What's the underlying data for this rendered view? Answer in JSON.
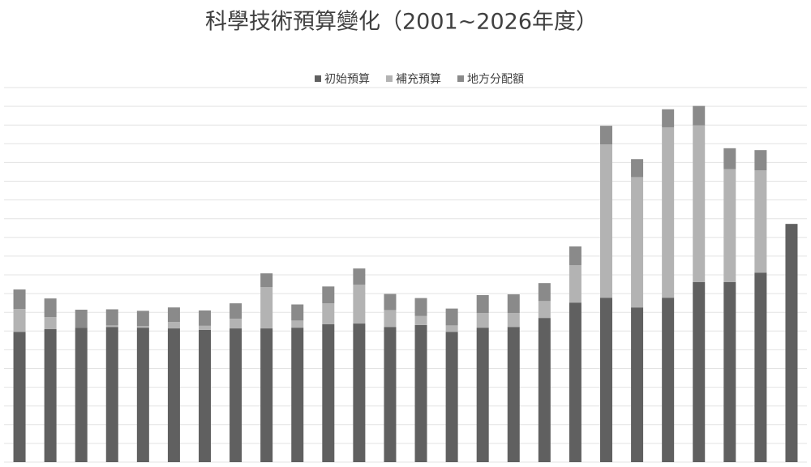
{
  "chart_data": {
    "type": "stacked_bar",
    "title": "科學技術預算變化（2001~2026年度）",
    "categories": [
      null,
      null,
      null,
      null,
      null,
      null,
      null,
      null,
      null,
      null,
      null,
      null,
      null,
      null,
      null,
      null,
      null,
      null,
      null,
      null,
      null,
      null,
      null,
      null,
      null,
      null
    ],
    "series": [
      {
        "name": "初始預算",
        "color": "#606060",
        "values": [
          34.8,
          35.5,
          35.9,
          36.1,
          35.9,
          35.7,
          35.3,
          35.7,
          35.7,
          35.9,
          36.8,
          37.0,
          36.1,
          36.6,
          34.8,
          35.9,
          36.1,
          38.5,
          42.6,
          43.9,
          41.3,
          43.9,
          48.1,
          48.1,
          50.6,
          63.6
        ]
      },
      {
        "name": "補充預算",
        "color": "#b3b3b3",
        "values": [
          6.1,
          3.2,
          0,
          0.4,
          0.4,
          1.7,
          1.1,
          2.6,
          11.0,
          1.9,
          5.6,
          10.4,
          4.5,
          2.4,
          1.7,
          3.9,
          3.7,
          4.5,
          10.0,
          40.9,
          34.8,
          45.5,
          41.8,
          30.1,
          27.3,
          null
        ]
      },
      {
        "name": "地方分配額",
        "color": "#8a8a8a",
        "values": [
          5.2,
          5.0,
          4.8,
          4.3,
          4.1,
          3.9,
          4.1,
          4.1,
          3.7,
          4.3,
          4.5,
          4.3,
          4.3,
          4.8,
          4.5,
          4.8,
          5.0,
          4.8,
          5.0,
          5.0,
          4.8,
          4.8,
          5.2,
          5.6,
          5.4,
          null
        ]
      }
    ],
    "ylim": [
      0,
      100
    ],
    "yticks": [
      0,
      5,
      10,
      15,
      20,
      25,
      30,
      35,
      40,
      45,
      50,
      55,
      60,
      65,
      70,
      75,
      80,
      85,
      90,
      95,
      100
    ],
    "grid": true,
    "legend": "top"
  }
}
